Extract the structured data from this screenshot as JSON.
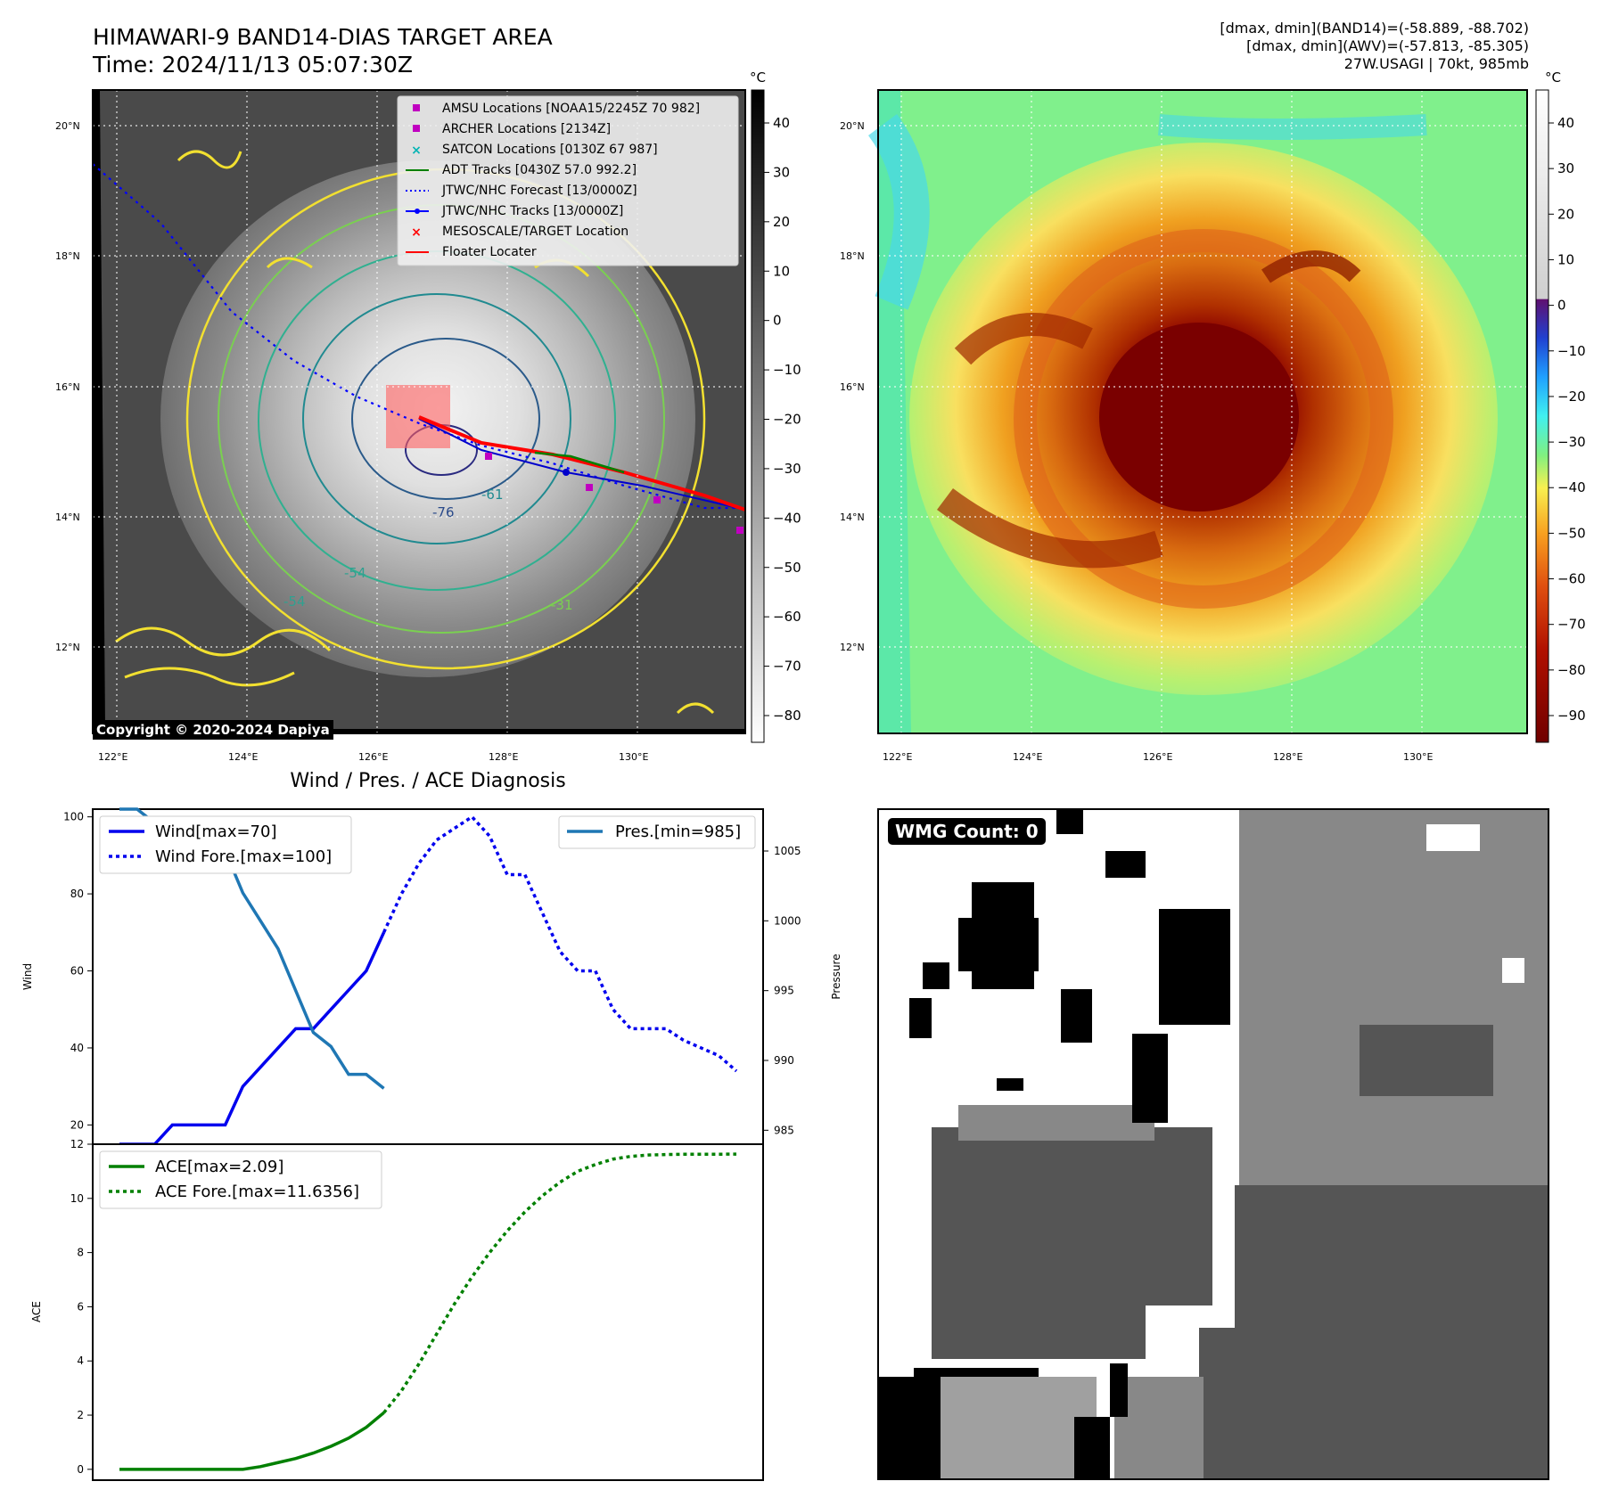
{
  "header": {
    "title_line1": "HIMAWARI-9 BAND14-DIAS TARGET AREA",
    "title_line2": "Time: 2024/11/13 05:07:30Z",
    "stats_line1": "[dmax, dmin](BAND14)=(-58.889, -88.702)",
    "stats_line2": "[dmax, dmin](AWV)=(-57.813, -85.305)",
    "stats_line3": "27W.USAGI | 70kt, 985mb"
  },
  "copyright": "Copyright © 2020-2024 Dapiya",
  "map": {
    "lat_labels": [
      "20°N",
      "18°N",
      "16°N",
      "14°N",
      "12°N"
    ],
    "lon_labels": [
      "122°E",
      "124°E",
      "126°E",
      "128°E",
      "130°E"
    ],
    "contour_labels": [
      "-76",
      "-54",
      "-54",
      "-31",
      "-61"
    ],
    "legend": [
      {
        "label": "AMSU Locations [NOAA15/2245Z 70 982]",
        "color": "#c000c0",
        "marker": "square"
      },
      {
        "label": "ARCHER Locations [2134Z]",
        "color": "#c000c0",
        "marker": "square"
      },
      {
        "label": "SATCON Locations [0130Z 67 987]",
        "color": "#00b4b4",
        "marker": "x"
      },
      {
        "label": "ADT Tracks [0430Z 57.0 992.2]",
        "color": "#008000",
        "marker": "line"
      },
      {
        "label": "JTWC/NHC Forecast [13/0000Z]",
        "color": "#0000ff",
        "marker": "dotted"
      },
      {
        "label": "JTWC/NHC Tracks [13/0000Z]",
        "color": "#0000ff",
        "marker": "line-dot"
      },
      {
        "label": "MESOSCALE/TARGET Location",
        "color": "#ff0000",
        "marker": "x"
      },
      {
        "label": "Floater Locater",
        "color": "#ff0000",
        "marker": "line"
      }
    ]
  },
  "colorbars": {
    "unit": "°C",
    "gray_ticks": [
      "40",
      "30",
      "20",
      "10",
      "0",
      "−10",
      "−20",
      "−30",
      "−40",
      "−50",
      "−60",
      "−70",
      "−80"
    ],
    "color_ticks": [
      "40",
      "30",
      "20",
      "10",
      "0",
      "−10",
      "−20",
      "−30",
      "−40",
      "−50",
      "−60",
      "−70",
      "−80",
      "−90"
    ]
  },
  "chart_data": [
    {
      "type": "line",
      "title": "Wind / Pres. / ACE Diagnosis",
      "ylabel": "Wind",
      "y2label": "Pressure",
      "ylim": [
        15,
        102
      ],
      "y2lim": [
        984,
        1008
      ],
      "yticks": [
        20,
        40,
        60,
        80,
        100
      ],
      "y2ticks": [
        985,
        990,
        995,
        1000,
        1005
      ],
      "legend_left": [
        "Wind[max=70]",
        "Wind Fore.[max=100]"
      ],
      "legend_right": [
        "Pres.[min=985]"
      ],
      "series": [
        {
          "name": "Wind[max=70]",
          "style": "solid",
          "color": "#0000ee",
          "axis": "left",
          "x": [
            0,
            1,
            2,
            3,
            4,
            5,
            6,
            7,
            8,
            9,
            10,
            11,
            12,
            13,
            14,
            15
          ],
          "y": [
            15,
            15,
            15,
            20,
            20,
            20,
            20,
            30,
            35,
            40,
            45,
            45,
            50,
            55,
            60,
            70
          ]
        },
        {
          "name": "Wind Fore.[max=100]",
          "style": "dotted",
          "color": "#0000ee",
          "axis": "left",
          "x": [
            15,
            16,
            17,
            18,
            19,
            20,
            21,
            22,
            23,
            24,
            25,
            26,
            27,
            28,
            29,
            30,
            31,
            32,
            33,
            34,
            35
          ],
          "y": [
            70,
            80,
            88,
            94,
            97,
            100,
            95,
            85,
            85,
            75,
            65,
            60,
            60,
            50,
            45,
            45,
            45,
            42,
            40,
            38,
            34
          ]
        },
        {
          "name": "Pres.[min=985]",
          "style": "solid",
          "color": "#1f77b4",
          "axis": "right",
          "x": [
            0,
            1,
            2,
            3,
            4,
            5,
            6,
            7,
            8,
            9,
            10,
            11,
            12,
            13,
            14,
            15
          ],
          "y": [
            1008,
            1008,
            1007,
            1007,
            1006,
            1006,
            1005,
            1002,
            1000,
            998,
            995,
            992,
            991,
            989,
            989,
            988
          ]
        }
      ]
    },
    {
      "type": "line",
      "ylabel": "ACE",
      "ylim": [
        -0.4,
        12
      ],
      "yticks": [
        0,
        2,
        4,
        6,
        8,
        10,
        12
      ],
      "legend": [
        "ACE[max=2.09]",
        "ACE Fore.[max=11.6356]"
      ],
      "series": [
        {
          "name": "ACE[max=2.09]",
          "style": "solid",
          "color": "#008000",
          "x": [
            0,
            1,
            2,
            3,
            4,
            5,
            6,
            7,
            8,
            9,
            10,
            11,
            12,
            13,
            14,
            15
          ],
          "y": [
            0,
            0,
            0,
            0,
            0,
            0,
            0,
            0,
            0.1,
            0.25,
            0.4,
            0.6,
            0.85,
            1.15,
            1.55,
            2.09
          ]
        },
        {
          "name": "ACE Fore.[max=11.6356]",
          "style": "dotted",
          "color": "#008000",
          "x": [
            15,
            16,
            17,
            18,
            19,
            20,
            21,
            22,
            23,
            24,
            25,
            26,
            27,
            28,
            29,
            30,
            31,
            32,
            33,
            34,
            35
          ],
          "y": [
            2.09,
            2.9,
            3.9,
            5.0,
            6.1,
            7.1,
            8.0,
            8.8,
            9.5,
            10.1,
            10.6,
            11.0,
            11.25,
            11.45,
            11.55,
            11.6,
            11.62,
            11.63,
            11.63,
            11.63,
            11.6356
          ]
        }
      ]
    }
  ],
  "wmg": {
    "label": "WMG Count: 0"
  }
}
